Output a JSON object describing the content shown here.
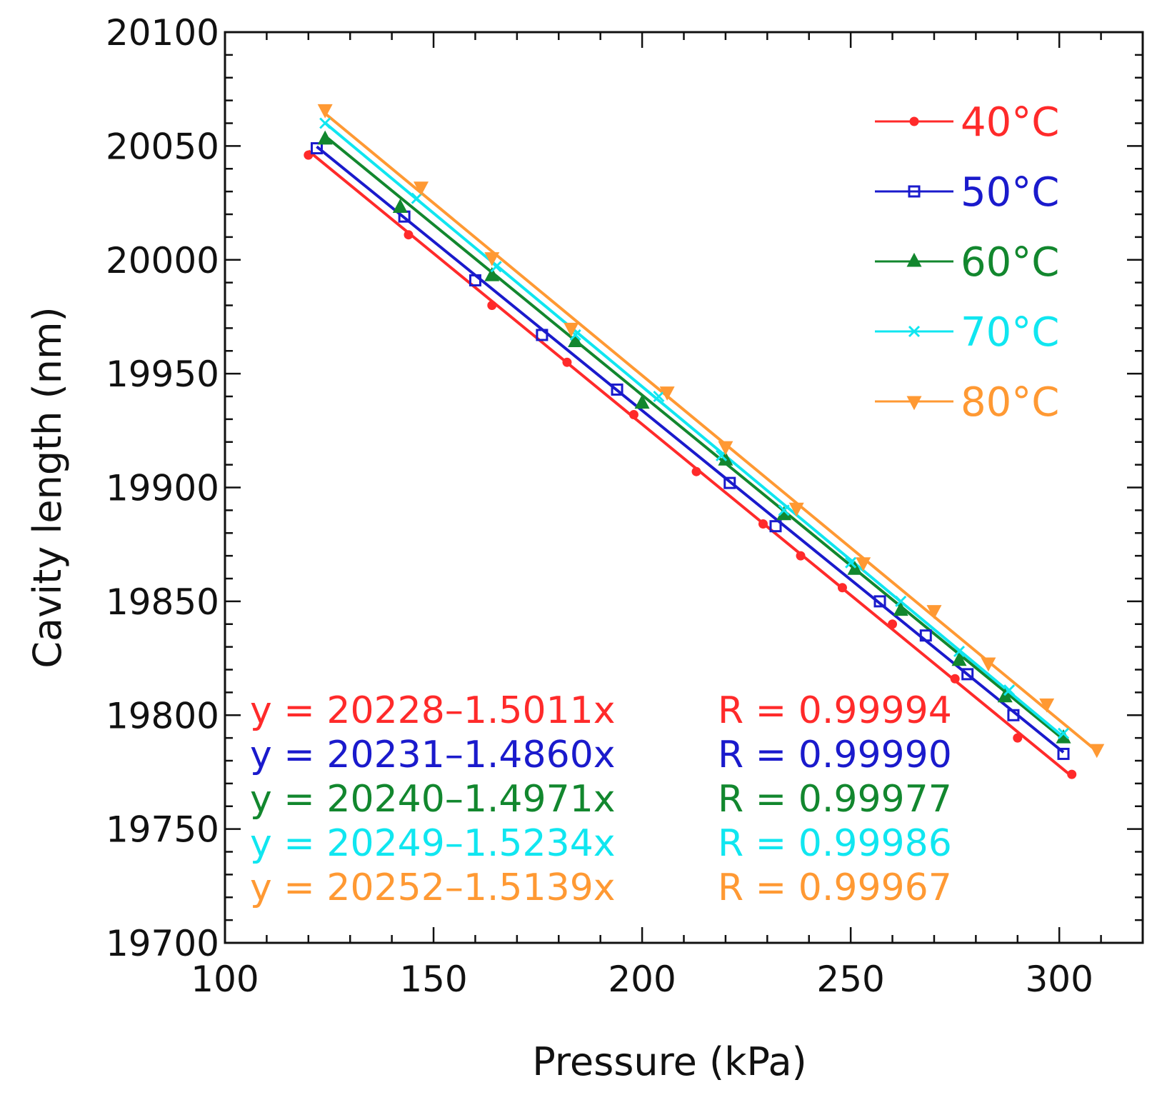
{
  "chart_data": {
    "type": "line",
    "title": "",
    "xlabel": "Pressure (kPa)",
    "ylabel": "Cavity length (nm)",
    "xlim": [
      100,
      320
    ],
    "ylim": [
      19700,
      20100
    ],
    "x_ticks": [
      "100",
      "150",
      "200",
      "250",
      "300"
    ],
    "y_ticks": [
      "19700",
      "19750",
      "19800",
      "19850",
      "19900",
      "19950",
      "20000",
      "20050",
      "20100"
    ],
    "legend_position": "top-right",
    "grid": false,
    "series": [
      {
        "name": "40°C",
        "color": "#ff2a2a",
        "marker": "circle",
        "x": [
          120,
          144,
          164,
          182,
          198,
          213,
          229,
          238,
          248,
          260,
          275,
          290,
          303
        ],
        "y": [
          20046,
          20011,
          19980,
          19955,
          19932,
          19907,
          19884,
          19870,
          19856,
          19840,
          19816,
          19790,
          19774
        ]
      },
      {
        "name": "50°C",
        "color": "#1a1acc",
        "marker": "square",
        "x": [
          122,
          143,
          160,
          176,
          194,
          221,
          232,
          257,
          268,
          278,
          289,
          301
        ],
        "y": [
          20049,
          20019,
          19991,
          19967,
          19943,
          19902,
          19883,
          19850,
          19835,
          19818,
          19800,
          19783
        ]
      },
      {
        "name": "60°C",
        "color": "#12872e",
        "marker": "triangle-up",
        "x": [
          124,
          142,
          164,
          184,
          200,
          220,
          234,
          251,
          262,
          276,
          287,
          301
        ],
        "y": [
          20053,
          20023,
          19993,
          19964,
          19937,
          19912,
          19888,
          19864,
          19846,
          19824,
          19808,
          19790
        ]
      },
      {
        "name": "70°C",
        "color": "#10e6f0",
        "marker": "x",
        "x": [
          124,
          146,
          165,
          184,
          204,
          219,
          234,
          250,
          262,
          276,
          288,
          301
        ],
        "y": [
          20060,
          20027,
          19997,
          19967,
          19940,
          19914,
          19890,
          19867,
          19850,
          19828,
          19811,
          19792
        ]
      },
      {
        "name": "80°C",
        "color": "#ff9933",
        "marker": "triangle-down",
        "x": [
          124,
          147,
          164,
          183,
          206,
          220,
          237,
          253,
          270,
          283,
          297,
          309
        ],
        "y": [
          20066,
          20032,
          20001,
          19970,
          19942,
          19918,
          19891,
          19867,
          19846,
          19823,
          19805,
          19785
        ]
      }
    ],
    "fits": [
      {
        "equation": "y = 20228–1.5011x",
        "r": "R = 0.99994",
        "intercept": 20228,
        "slope": -1.5011,
        "color": "#ff2a2a"
      },
      {
        "equation": "y = 20231–1.4860x",
        "r": "R = 0.99990",
        "intercept": 20231,
        "slope": -1.486,
        "color": "#1a1acc"
      },
      {
        "equation": "y = 20240–1.4971x",
        "r": "R = 0.99977",
        "intercept": 20240,
        "slope": -1.4971,
        "color": "#12872e"
      },
      {
        "equation": "y = 20249–1.5234x",
        "r": "R = 0.99986",
        "intercept": 20249,
        "slope": -1.5234,
        "color": "#10e6f0"
      },
      {
        "equation": "y = 20252–1.5139x",
        "r": "R = 0.99967",
        "intercept": 20252,
        "slope": -1.5139,
        "color": "#ff9933"
      }
    ]
  }
}
